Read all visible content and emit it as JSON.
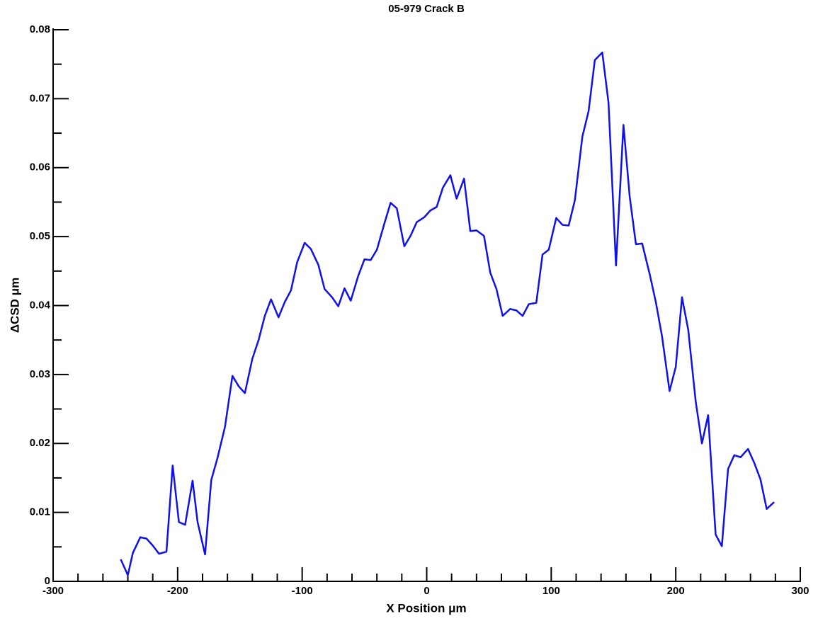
{
  "chart_data": {
    "type": "line",
    "title": "05-979 Crack B",
    "x_label": "X Position μm",
    "y_label": "ΔCSD μm",
    "x": [
      -245.7,
      -240,
      -236,
      -230,
      -225,
      -220,
      -215,
      -209,
      -204,
      -199,
      -194,
      -188,
      -184,
      -178,
      -173,
      -168,
      -162,
      -156,
      -151,
      -146,
      -140,
      -135,
      -130,
      -125,
      -119,
      -114,
      -109,
      -104,
      -98,
      -93,
      -87,
      -82,
      -76,
      -71,
      -66,
      -61,
      -55,
      -50,
      -45,
      -40,
      -34,
      -29,
      -24,
      -18,
      -13,
      -8,
      -2,
      3,
      8,
      13,
      19,
      24,
      30,
      35,
      40,
      46,
      51,
      56,
      61,
      67,
      72,
      77,
      82,
      88,
      93,
      98,
      104,
      109,
      114,
      119,
      125,
      130,
      135,
      141,
      146,
      152,
      158,
      163,
      168,
      173,
      179,
      184,
      189,
      195,
      200,
      205,
      210,
      216,
      221,
      226,
      232,
      237,
      242,
      247,
      252,
      258,
      263,
      268,
      273,
      279
    ],
    "series": [
      {
        "name": "ΔCSD",
        "color": "#1010e8",
        "values": [
          0.0032,
          0.0009,
          0.0041,
          0.0064,
          0.0062,
          0.0052,
          0.004,
          0.0043,
          0.0168,
          0.0086,
          0.0082,
          0.0146,
          0.0086,
          0.0039,
          0.0147,
          0.0179,
          0.0224,
          0.0298,
          0.0283,
          0.0273,
          0.0323,
          0.035,
          0.0385,
          0.0409,
          0.0383,
          0.0405,
          0.0422,
          0.0463,
          0.0491,
          0.0482,
          0.0459,
          0.0424,
          0.0412,
          0.0399,
          0.0425,
          0.0407,
          0.0443,
          0.0467,
          0.0466,
          0.0481,
          0.0519,
          0.0549,
          0.0541,
          0.0486,
          0.0501,
          0.0521,
          0.0528,
          0.0538,
          0.0543,
          0.0571,
          0.0589,
          0.0555,
          0.0584,
          0.0508,
          0.0509,
          0.0501,
          0.0448,
          0.0424,
          0.0385,
          0.0395,
          0.0393,
          0.0385,
          0.0402,
          0.0404,
          0.0474,
          0.0481,
          0.0527,
          0.0517,
          0.0516,
          0.0553,
          0.0645,
          0.0682,
          0.0756,
          0.0767,
          0.0694,
          0.0458,
          0.0662,
          0.0558,
          0.0489,
          0.049,
          0.0446,
          0.0405,
          0.0355,
          0.0276,
          0.0311,
          0.0412,
          0.0365,
          0.0261,
          0.02,
          0.0241,
          0.0068,
          0.0051,
          0.0163,
          0.0183,
          0.018,
          0.0192,
          0.0172,
          0.0148,
          0.0105,
          0.0115
        ]
      }
    ],
    "xlim": [
      -300,
      300
    ],
    "ylim": [
      0,
      0.08
    ],
    "xticks": [
      -300,
      -200,
      -100,
      0,
      100,
      200,
      300
    ],
    "yticks": [
      0,
      0.01,
      0.02,
      0.03,
      0.04,
      0.05,
      0.06,
      0.07,
      0.08
    ],
    "xminorticks": [
      -280,
      -260,
      -240,
      -220,
      -180,
      -160,
      -140,
      -120,
      -80,
      -60,
      -40,
      -20,
      20,
      40,
      60,
      80,
      120,
      140,
      160,
      180,
      220,
      240,
      260,
      280
    ],
    "yminorticks": [
      0.005,
      0.015,
      0.025,
      0.035,
      0.045,
      0.055,
      0.065,
      0.075
    ]
  }
}
